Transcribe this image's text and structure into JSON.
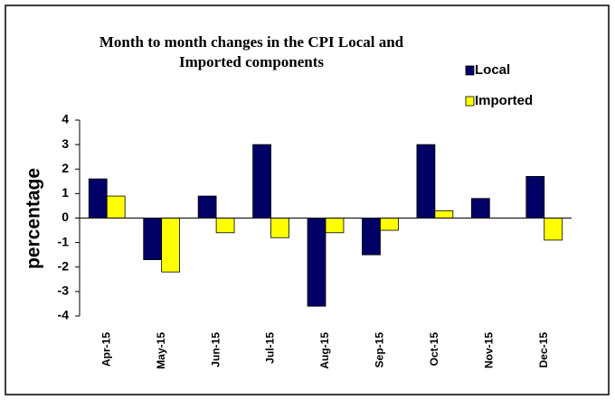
{
  "chart_data": {
    "type": "bar",
    "title": "Month to month changes in the CPI Local and Imported components",
    "y_label": "percentage",
    "categories": [
      "Apr-15",
      "May-15",
      "Jun-15",
      "Jul-15",
      "Aug-15",
      "Sep-15",
      "Oct-15",
      "Nov-15",
      "Dec-15"
    ],
    "series": [
      {
        "name": "Local",
        "color": "#000066",
        "values": [
          1.6,
          -1.7,
          0.9,
          3.0,
          -3.6,
          -1.5,
          3.0,
          0.8,
          1.7
        ]
      },
      {
        "name": "Imported",
        "color": "#ffff00",
        "values": [
          0.9,
          -2.2,
          -0.6,
          -0.8,
          -0.6,
          -0.5,
          0.3,
          0,
          -0.9
        ]
      }
    ],
    "ylim": [
      -4,
      4
    ],
    "yticks": [
      -4,
      -3,
      -2,
      -1,
      0,
      1,
      2,
      3,
      4
    ],
    "grid": false
  }
}
